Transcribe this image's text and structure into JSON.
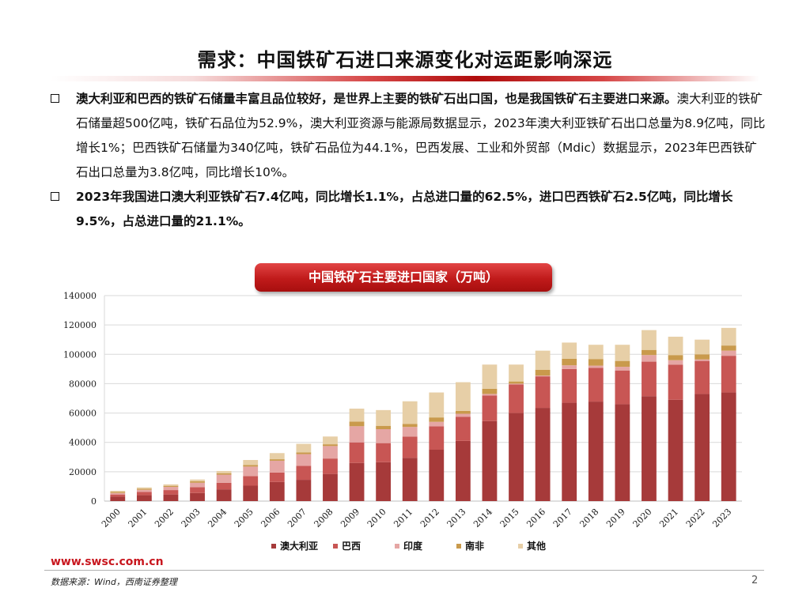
{
  "title": "需求：中国铁矿石进口来源变化对运距影响深远",
  "bullets": [
    {
      "bold": "澳大利亚和巴西的铁矿石储量丰富且品位较好，是世界上主要的铁矿石出口国，也是我国铁矿石主要进口来源。",
      "normal": "澳大利亚的铁矿石储量超500亿吨，铁矿石品位为52.9%，澳大利亚资源与能源局数据显示，2023年澳大利亚铁矿石出口总量为8.9亿吨，同比增长1%；巴西铁矿石储量为340亿吨，铁矿石品位为44.1%，巴西发展、工业和外贸部（Mdic）数据显示，2023年巴西铁矿石出口总量为3.8亿吨，同比增长10%。"
    },
    {
      "bold": "2023年我国进口澳大利亚铁矿石7.4亿吨，同比增长1.1%，占总进口量的62.5%，进口巴西铁矿石2.5亿吨，同比增长9.5%，占总进口量的21.1%。",
      "normal": ""
    }
  ],
  "chart_title": "中国铁矿石主要进口国家（万吨）",
  "chart_data": {
    "type": "bar",
    "stacked": true,
    "categories": [
      "2000",
      "2001",
      "2002",
      "2003",
      "2004",
      "2005",
      "2006",
      "2007",
      "2008",
      "2009",
      "2010",
      "2011",
      "2012",
      "2013",
      "2014",
      "2015",
      "2016",
      "2017",
      "2018",
      "2019",
      "2020",
      "2021",
      "2022",
      "2023"
    ],
    "series": [
      {
        "name": "澳大利亚",
        "color": "#a63a3a",
        "values": [
          3000,
          4000,
          4500,
          5500,
          8000,
          10500,
          13000,
          14500,
          18500,
          26000,
          26500,
          29500,
          35000,
          41000,
          54500,
          60000,
          63500,
          67000,
          67800,
          66000,
          71500,
          69000,
          73000,
          74000
        ]
      },
      {
        "name": "巴西",
        "color": "#c85654",
        "values": [
          1500,
          2200,
          3000,
          4000,
          4500,
          6500,
          6500,
          9500,
          10500,
          14000,
          13000,
          14500,
          16000,
          16500,
          17500,
          19500,
          21500,
          23000,
          23000,
          23000,
          23500,
          24000,
          22500,
          25000
        ]
      },
      {
        "name": "印度",
        "color": "#e5a6a4",
        "values": [
          1000,
          1500,
          2200,
          3000,
          5500,
          6500,
          8000,
          8000,
          8500,
          11000,
          9500,
          6500,
          3000,
          2000,
          1000,
          500,
          500,
          2500,
          1500,
          2500,
          4500,
          3000,
          1000,
          3500
        ]
      },
      {
        "name": "南非",
        "color": "#c99a4c",
        "values": [
          700,
          700,
          700,
          1000,
          1000,
          1000,
          1000,
          1200,
          1200,
          3200,
          2300,
          2000,
          3000,
          2000,
          3500,
          1500,
          4000,
          4500,
          4500,
          4000,
          3500,
          3500,
          3500,
          3500
        ]
      },
      {
        "name": "其他",
        "color": "#e7cfa7",
        "values": [
          800,
          900,
          1000,
          1200,
          1500,
          3500,
          4200,
          5800,
          5300,
          8800,
          10700,
          15500,
          17000,
          19500,
          16500,
          11500,
          13000,
          11000,
          9700,
          11000,
          13500,
          12500,
          10000,
          12000
        ]
      }
    ],
    "ylim": [
      0,
      140000
    ],
    "yticks": [
      0,
      20000,
      40000,
      60000,
      80000,
      100000,
      120000,
      140000
    ],
    "grid": true,
    "legend_position": "bottom"
  },
  "footer": {
    "logo": "www.swsc.com.cn",
    "source": "数据来源：Wind，西南证券整理",
    "page": "2"
  }
}
